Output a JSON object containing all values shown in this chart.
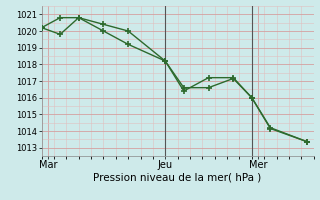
{
  "title": "Pression niveau de la mer( hPa )",
  "bg_color": "#ceeaea",
  "grid_color_major": "#d4a0a0",
  "grid_color_minor": "#e0c0c0",
  "line_color": "#2d6a2d",
  "ylim": [
    1012.5,
    1021.5
  ],
  "yticks": [
    1013,
    1014,
    1015,
    1016,
    1017,
    1018,
    1019,
    1020,
    1021
  ],
  "xlim": [
    0,
    22
  ],
  "day_labels": [
    "Mar",
    "Jeu",
    "Mer"
  ],
  "day_positions": [
    0.5,
    10,
    17.5
  ],
  "vline_positions": [
    10,
    17
  ],
  "series1_x": [
    0,
    1.5,
    3,
    5,
    7,
    10,
    11.5,
    13.5,
    15.5,
    17,
    18.5,
    21.5
  ],
  "series1_y": [
    1020.2,
    1019.8,
    1020.8,
    1020.4,
    1020.0,
    1018.2,
    1016.4,
    1017.2,
    1017.2,
    1016.0,
    1014.2,
    1013.35
  ],
  "series2_x": [
    0,
    1.5,
    3,
    5,
    7,
    10,
    11.5,
    13.5,
    15.5,
    17,
    18.5,
    21.5
  ],
  "series2_y": [
    1020.2,
    1020.8,
    1020.8,
    1020.0,
    1019.2,
    1018.2,
    1016.6,
    1016.6,
    1017.15,
    1016.0,
    1014.15,
    1013.35
  ],
  "marker": "+",
  "markersize": 4,
  "markeredgewidth": 1.2,
  "linewidth": 1.0,
  "xlabel_fontsize": 7.5,
  "ytick_fontsize": 6,
  "xtick_fontsize": 7
}
